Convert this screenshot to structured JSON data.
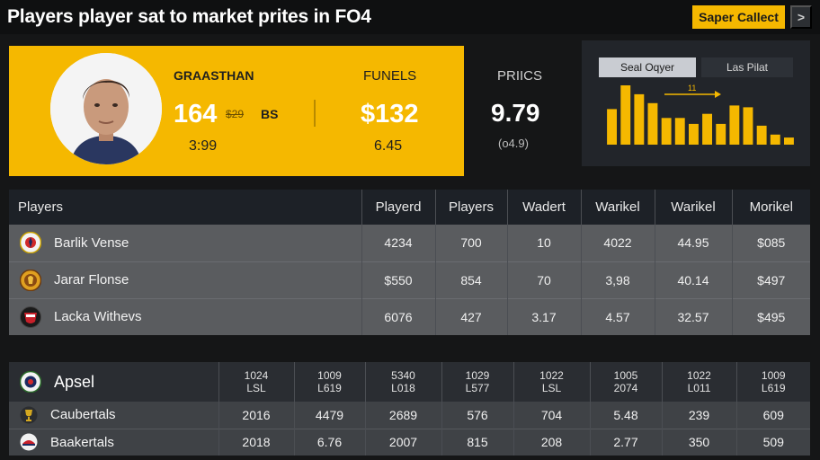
{
  "header": {
    "title": "Players player sat to market prites in FO4",
    "super_button": "Saper Callect",
    "next_button": ">"
  },
  "player_card": {
    "name": "GRAASTHAN",
    "rating": "164",
    "old_value": "$29",
    "unit": "BS",
    "sub_value": "3:99",
    "funels_label": "FUNELS",
    "price": "$132",
    "price_sub": "6.45"
  },
  "prices": {
    "label": "PRIICS",
    "value": "9.79",
    "sub": "(o4.9)"
  },
  "chart_panel": {
    "tab_active": "Seal Oqyer",
    "tab_other": "Las Pilat",
    "marker_label": "11",
    "colors": {
      "bar": "#f5b800",
      "panel": "#22252a"
    }
  },
  "chart_data": {
    "type": "bar",
    "values": [
      6,
      10,
      8.5,
      7,
      4.5,
      4.5,
      3.5,
      5.2,
      3.5,
      6.6,
      6.3,
      3.2,
      1.7,
      1.2
    ],
    "ylim": [
      0,
      10
    ]
  },
  "table1": {
    "columns": [
      "Players",
      "Playerd",
      "Players",
      "Wadert",
      "Warikel",
      "Warikel",
      "Morikel"
    ],
    "rows": [
      {
        "icon": "team-crest-icon",
        "name": "Barlik Vense",
        "cells": [
          "4234",
          "700",
          "10",
          "4022",
          "44.95",
          "$085"
        ]
      },
      {
        "icon": "lion-crest-icon",
        "name": "Jarar Flonse",
        "cells": [
          "$550",
          "854",
          "70",
          "3,98",
          "40.14",
          "$497"
        ]
      },
      {
        "icon": "shield-crest-icon",
        "name": "Lacka Withevs",
        "cells": [
          "6076",
          "427",
          "3.17",
          "4.57",
          "32.57",
          "$495"
        ]
      }
    ]
  },
  "table2": {
    "header_name": "Apsel",
    "columns": [
      [
        "1024",
        "LSL"
      ],
      [
        "1009",
        "L619"
      ],
      [
        "5340",
        "L018"
      ],
      [
        "1029",
        "L577"
      ],
      [
        "1022",
        "LSL"
      ],
      [
        "1005",
        "2074"
      ],
      [
        "1022",
        "L011"
      ],
      [
        "1009",
        "L619"
      ]
    ],
    "rows": [
      {
        "icon": "trophy-icon",
        "name": "Caubertals",
        "cells": [
          "2016",
          "4479",
          "2689",
          "576",
          "704",
          "5.48",
          "239",
          "609"
        ]
      },
      {
        "icon": "hat-crest-icon",
        "name": "Baakertals",
        "cells": [
          "2018",
          "6.76",
          "2007",
          "815",
          "208",
          "2.77",
          "350",
          "509"
        ]
      }
    ]
  }
}
